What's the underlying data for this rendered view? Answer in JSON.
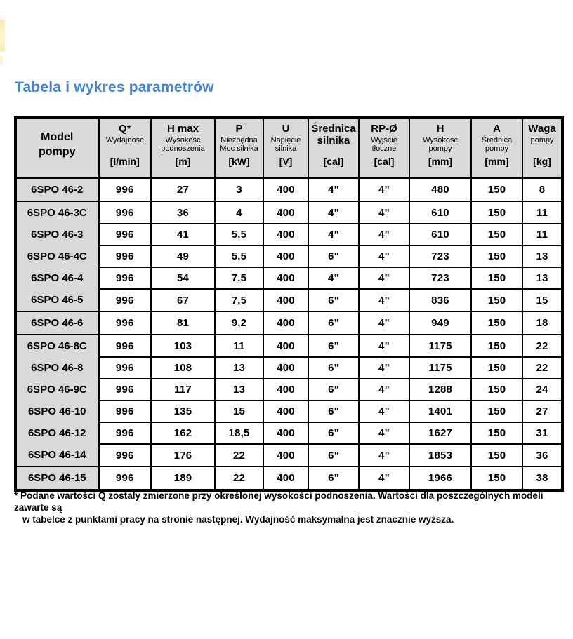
{
  "page": {
    "title": "Tabela i wykres parametrów",
    "title_color": "#4285d8"
  },
  "decor": {
    "corner_mark_color": "#f9e8b2"
  },
  "table": {
    "header_bg": "#d9d9d9",
    "columns": [
      {
        "id": "model",
        "title": "Model\npompy",
        "sub": "",
        "unit": ""
      },
      {
        "id": "q",
        "title": "Q*",
        "sub": "Wydajność",
        "unit": "[l/min]"
      },
      {
        "id": "hmax",
        "title": "H max",
        "sub": "Wysokość\npodnoszenia",
        "unit": "[m]"
      },
      {
        "id": "p",
        "title": "P",
        "sub": "Niezbędna\nMoc silnika",
        "unit": "[kW]"
      },
      {
        "id": "u",
        "title": "U",
        "sub": "Napięcie\nsilnika",
        "unit": "[V]"
      },
      {
        "id": "srednica-silnika",
        "title": "Średnica\nsilnika",
        "sub": "",
        "unit": "[cal]"
      },
      {
        "id": "rp",
        "title": "RP-Ø",
        "sub": "Wyjście\ntłoczne",
        "unit": "[cal]"
      },
      {
        "id": "h",
        "title": "H",
        "sub": "Wysokość\npompy",
        "unit": "[mm]"
      },
      {
        "id": "a",
        "title": "A",
        "sub": "Średnica\npompy",
        "unit": "[mm]"
      },
      {
        "id": "waga",
        "title": "Waga",
        "sub": "pompy",
        "unit": "[kg]"
      }
    ],
    "rows": [
      {
        "model": "6SPO 46-2",
        "values": [
          "996",
          "27",
          "3",
          "400",
          "4\"",
          "4\"",
          "480",
          "150",
          "8"
        ],
        "group_end": true
      },
      {
        "model": "6SPO 46-3C",
        "values": [
          "996",
          "36",
          "4",
          "400",
          "4\"",
          "4\"",
          "610",
          "150",
          "11"
        ],
        "group_end": false
      },
      {
        "model": "6SPO 46-3",
        "values": [
          "996",
          "41",
          "5,5",
          "400",
          "4\"",
          "4\"",
          "610",
          "150",
          "11"
        ],
        "group_end": false
      },
      {
        "model": "6SPO 46-4C",
        "values": [
          "996",
          "49",
          "5,5",
          "400",
          "6\"",
          "4\"",
          "723",
          "150",
          "13"
        ],
        "group_end": false
      },
      {
        "model": "6SPO 46-4",
        "values": [
          "996",
          "54",
          "7,5",
          "400",
          "4\"",
          "4\"",
          "723",
          "150",
          "13"
        ],
        "group_end": false
      },
      {
        "model": "6SPO 46-5",
        "values": [
          "996",
          "67",
          "7,5",
          "400",
          "6\"",
          "4\"",
          "836",
          "150",
          "15"
        ],
        "group_end": true
      },
      {
        "model": "6SPO 46-6",
        "values": [
          "996",
          "81",
          "9,2",
          "400",
          "6\"",
          "4\"",
          "949",
          "150",
          "18"
        ],
        "group_end": true
      },
      {
        "model": "6SPO 46-8C",
        "values": [
          "996",
          "103",
          "11",
          "400",
          "6\"",
          "4\"",
          "1175",
          "150",
          "22"
        ],
        "group_end": false
      },
      {
        "model": "6SPO 46-8",
        "values": [
          "996",
          "108",
          "13",
          "400",
          "6\"",
          "4\"",
          "1175",
          "150",
          "22"
        ],
        "group_end": false
      },
      {
        "model": "6SPO 46-9C",
        "values": [
          "996",
          "117",
          "13",
          "400",
          "6\"",
          "4\"",
          "1288",
          "150",
          "24"
        ],
        "group_end": false
      },
      {
        "model": "6SPO 46-10",
        "values": [
          "996",
          "135",
          "15",
          "400",
          "6\"",
          "4\"",
          "1401",
          "150",
          "27"
        ],
        "group_end": false
      },
      {
        "model": "6SPO 46-12",
        "values": [
          "996",
          "162",
          "18,5",
          "400",
          "6\"",
          "4\"",
          "1627",
          "150",
          "31"
        ],
        "group_end": false
      },
      {
        "model": "6SPO 46-14",
        "values": [
          "996",
          "176",
          "22",
          "400",
          "6\"",
          "4\"",
          "1853",
          "150",
          "36"
        ],
        "group_end": true
      },
      {
        "model": "6SPO 46-15",
        "values": [
          "996",
          "189",
          "22",
          "400",
          "6\"",
          "4\"",
          "1966",
          "150",
          "38"
        ],
        "group_end": true
      }
    ]
  },
  "footnote": {
    "line1": "* Podane wartości Q zostały zmierzone przy określonej wysokości podnoszenia. Wartości dla poszczególnych modeli zawarte są",
    "line2": "w tabelce z punktami pracy na stronie następnej. Wydajność maksymalna jest znacznie wyższa."
  }
}
